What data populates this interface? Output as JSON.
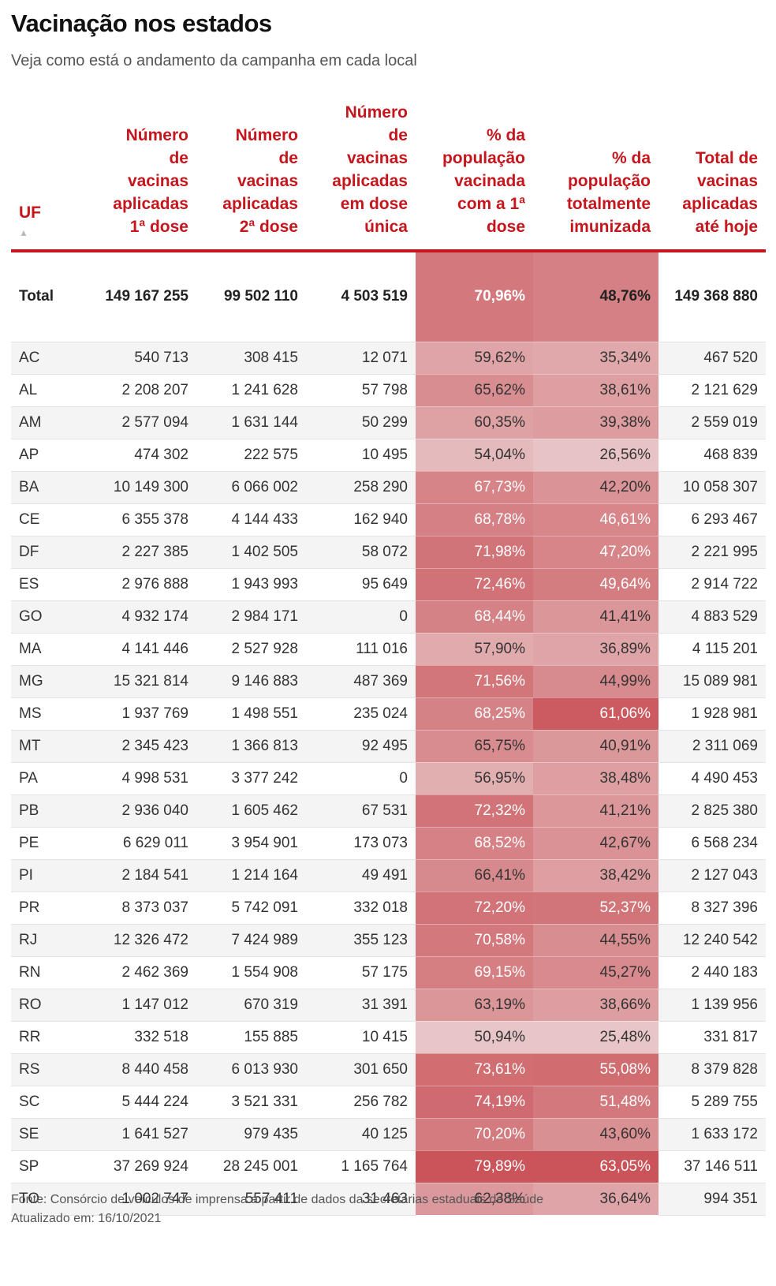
{
  "title": "Vacinação nos estados",
  "subtitle": "Veja como está o andamento da campanha em cada local",
  "headers": {
    "uf": "UF",
    "sort_icon": "▲",
    "dose1": [
      "Número",
      "de",
      "vacinas",
      "aplicadas",
      "1ª dose"
    ],
    "dose2": [
      "Número",
      "de",
      "vacinas",
      "aplicadas",
      "2ª dose"
    ],
    "dose_unica": [
      "Número",
      "de",
      "vacinas",
      "aplicadas",
      "em dose",
      "única"
    ],
    "pct1": [
      "% da",
      "população",
      "vacinada",
      "com a 1ª",
      "dose"
    ],
    "pct_total": [
      "% da",
      "população",
      "totalmente",
      "imunizada"
    ],
    "total": [
      "Total de",
      "vacinas",
      "aplicadas",
      "até hoje"
    ]
  },
  "colors": {
    "accent": "#c4161c",
    "heat_strong": "#c9555a",
    "heat_light": "#e8c6c8"
  },
  "total_row": {
    "uf": "Total",
    "dose1": "149 167 255",
    "dose2": "99 502 110",
    "dose_unica": "4 503 519",
    "pct1": "70,96%",
    "pct_total": "48,76%",
    "total": "149 368 880"
  },
  "rows": [
    {
      "uf": "AC",
      "dose1": "540 713",
      "dose2": "308 415",
      "dose_unica": "12 071",
      "pct1": "59,62%",
      "pct_total": "35,34%",
      "total": "467 520"
    },
    {
      "uf": "AL",
      "dose1": "2 208 207",
      "dose2": "1 241 628",
      "dose_unica": "57 798",
      "pct1": "65,62%",
      "pct_total": "38,61%",
      "total": "2 121 629"
    },
    {
      "uf": "AM",
      "dose1": "2 577 094",
      "dose2": "1 631 144",
      "dose_unica": "50 299",
      "pct1": "60,35%",
      "pct_total": "39,38%",
      "total": "2 559 019"
    },
    {
      "uf": "AP",
      "dose1": "474 302",
      "dose2": "222 575",
      "dose_unica": "10 495",
      "pct1": "54,04%",
      "pct_total": "26,56%",
      "total": "468 839"
    },
    {
      "uf": "BA",
      "dose1": "10 149 300",
      "dose2": "6 066 002",
      "dose_unica": "258 290",
      "pct1": "67,73%",
      "pct_total": "42,20%",
      "total": "10 058 307"
    },
    {
      "uf": "CE",
      "dose1": "6 355 378",
      "dose2": "4 144 433",
      "dose_unica": "162 940",
      "pct1": "68,78%",
      "pct_total": "46,61%",
      "total": "6 293 467"
    },
    {
      "uf": "DF",
      "dose1": "2 227 385",
      "dose2": "1 402 505",
      "dose_unica": "58 072",
      "pct1": "71,98%",
      "pct_total": "47,20%",
      "total": "2 221 995"
    },
    {
      "uf": "ES",
      "dose1": "2 976 888",
      "dose2": "1 943 993",
      "dose_unica": "95 649",
      "pct1": "72,46%",
      "pct_total": "49,64%",
      "total": "2 914 722"
    },
    {
      "uf": "GO",
      "dose1": "4 932 174",
      "dose2": "2 984 171",
      "dose_unica": "0",
      "pct1": "68,44%",
      "pct_total": "41,41%",
      "total": "4 883 529"
    },
    {
      "uf": "MA",
      "dose1": "4 141 446",
      "dose2": "2 527 928",
      "dose_unica": "111 016",
      "pct1": "57,90%",
      "pct_total": "36,89%",
      "total": "4 115 201"
    },
    {
      "uf": "MG",
      "dose1": "15 321 814",
      "dose2": "9 146 883",
      "dose_unica": "487 369",
      "pct1": "71,56%",
      "pct_total": "44,99%",
      "total": "15 089 981"
    },
    {
      "uf": "MS",
      "dose1": "1 937 769",
      "dose2": "1 498 551",
      "dose_unica": "235 024",
      "pct1": "68,25%",
      "pct_total": "61,06%",
      "total": "1 928 981"
    },
    {
      "uf": "MT",
      "dose1": "2 345 423",
      "dose2": "1 366 813",
      "dose_unica": "92 495",
      "pct1": "65,75%",
      "pct_total": "40,91%",
      "total": "2 311 069"
    },
    {
      "uf": "PA",
      "dose1": "4 998 531",
      "dose2": "3 377 242",
      "dose_unica": "0",
      "pct1": "56,95%",
      "pct_total": "38,48%",
      "total": "4 490 453"
    },
    {
      "uf": "PB",
      "dose1": "2 936 040",
      "dose2": "1 605 462",
      "dose_unica": "67 531",
      "pct1": "72,32%",
      "pct_total": "41,21%",
      "total": "2 825 380"
    },
    {
      "uf": "PE",
      "dose1": "6 629 011",
      "dose2": "3 954 901",
      "dose_unica": "173 073",
      "pct1": "68,52%",
      "pct_total": "42,67%",
      "total": "6 568 234"
    },
    {
      "uf": "PI",
      "dose1": "2 184 541",
      "dose2": "1 214 164",
      "dose_unica": "49 491",
      "pct1": "66,41%",
      "pct_total": "38,42%",
      "total": "2 127 043"
    },
    {
      "uf": "PR",
      "dose1": "8 373 037",
      "dose2": "5 742 091",
      "dose_unica": "332 018",
      "pct1": "72,20%",
      "pct_total": "52,37%",
      "total": "8 327 396"
    },
    {
      "uf": "RJ",
      "dose1": "12 326 472",
      "dose2": "7 424 989",
      "dose_unica": "355 123",
      "pct1": "70,58%",
      "pct_total": "44,55%",
      "total": "12 240 542"
    },
    {
      "uf": "RN",
      "dose1": "2 462 369",
      "dose2": "1 554 908",
      "dose_unica": "57 175",
      "pct1": "69,15%",
      "pct_total": "45,27%",
      "total": "2 440 183"
    },
    {
      "uf": "RO",
      "dose1": "1 147 012",
      "dose2": "670 319",
      "dose_unica": "31 391",
      "pct1": "63,19%",
      "pct_total": "38,66%",
      "total": "1 139 956"
    },
    {
      "uf": "RR",
      "dose1": "332 518",
      "dose2": "155 885",
      "dose_unica": "10 415",
      "pct1": "50,94%",
      "pct_total": "25,48%",
      "total": "331 817"
    },
    {
      "uf": "RS",
      "dose1": "8 440 458",
      "dose2": "6 013 930",
      "dose_unica": "301 650",
      "pct1": "73,61%",
      "pct_total": "55,08%",
      "total": "8 379 828"
    },
    {
      "uf": "SC",
      "dose1": "5 444 224",
      "dose2": "3 521 331",
      "dose_unica": "256 782",
      "pct1": "74,19%",
      "pct_total": "51,48%",
      "total": "5 289 755"
    },
    {
      "uf": "SE",
      "dose1": "1 641 527",
      "dose2": "979 435",
      "dose_unica": "40 125",
      "pct1": "70,20%",
      "pct_total": "43,60%",
      "total": "1 633 172"
    },
    {
      "uf": "SP",
      "dose1": "37 269 924",
      "dose2": "28 245 001",
      "dose_unica": "1 165 764",
      "pct1": "79,89%",
      "pct_total": "63,05%",
      "total": "37 146 511"
    },
    {
      "uf": "TO",
      "dose1": "1 002 747",
      "dose2": "557 411",
      "dose_unica": "31 463",
      "pct1": "62,38%",
      "pct_total": "36,64%",
      "total": "994 351"
    }
  ],
  "footer": {
    "source": "Fonte: Consórcio de veículos de imprensa a partir de dados da secretarias estaduais de Saúde",
    "updated": "Atualizado em: 16/10/2021"
  }
}
